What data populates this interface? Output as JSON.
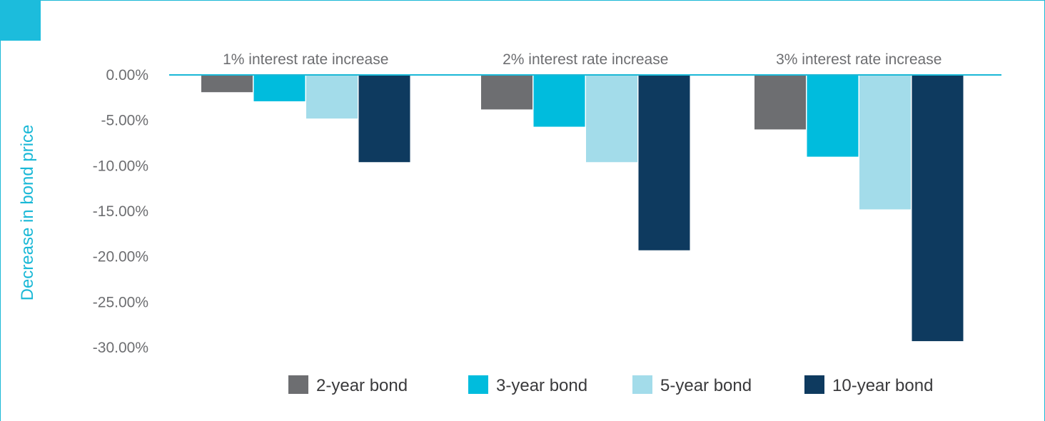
{
  "chart_data": {
    "type": "bar",
    "title": "",
    "xlabel": "",
    "ylabel": "Decrease in bond price",
    "categories": [
      "1% interest rate increase",
      "2% interest rate increase",
      "3% interest rate increase"
    ],
    "series": [
      {
        "name": "2-year bond",
        "color": "#6d6e71",
        "values": [
          -1.9,
          -3.8,
          -6.0
        ]
      },
      {
        "name": "3-year bond",
        "color": "#00bcdd",
        "values": [
          -2.9,
          -5.7,
          -9.0
        ]
      },
      {
        "name": "5-year bond",
        "color": "#a3dcea",
        "values": [
          -4.8,
          -9.6,
          -14.8
        ]
      },
      {
        "name": "10-year bond",
        "color": "#0e3a5f",
        "values": [
          -9.6,
          -19.3,
          -29.3
        ]
      }
    ],
    "yticks": [
      "0.00%",
      "-5.00%",
      "-10.00%",
      "-15.00%",
      "-20.00%",
      "-25.00%",
      "-30.00%"
    ],
    "ytick_values": [
      0,
      -5,
      -10,
      -15,
      -20,
      -25,
      -30
    ],
    "ylim": [
      -30,
      0
    ],
    "grid": false,
    "legend_position": "bottom",
    "axis_color": "#1ab8d6"
  }
}
